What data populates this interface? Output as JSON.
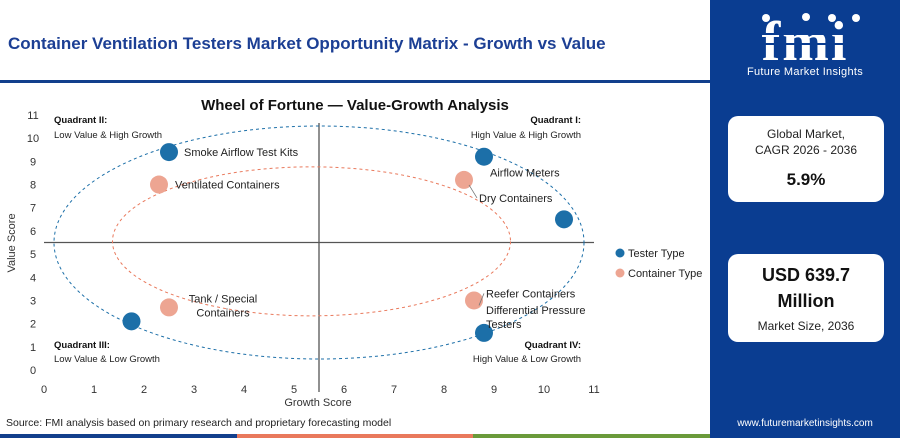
{
  "header": {
    "title": "Container Ventilation Testers Market Opportunity Matrix - Growth vs Value"
  },
  "chart_data": {
    "type": "scatter",
    "title": "Wheel of Fortune — Value-Growth Analysis",
    "xlabel": "Growth Score",
    "ylabel": "Value Score",
    "xlim": [
      0,
      11
    ],
    "ylim": [
      0,
      11
    ],
    "xticks": [
      "0",
      "1",
      "2",
      "3",
      "4",
      "5",
      "6",
      "7",
      "8",
      "9",
      "10",
      "11"
    ],
    "yticks": [
      "0",
      "1",
      "2",
      "3",
      "4",
      "5",
      "6",
      "7",
      "8",
      "9",
      "10",
      "11"
    ],
    "divider": {
      "x": 5.5,
      "y": 5.5
    },
    "quadrants": [
      {
        "title": "Quadrant II:",
        "subtitle": "Low Value & High Growth",
        "pos": "top-left"
      },
      {
        "title": "Quadrant I:",
        "subtitle": "High Value & High Growth",
        "pos": "top-right"
      },
      {
        "title": "Quadrant III:",
        "subtitle": "Low Value & Low Growth",
        "pos": "bottom-left"
      },
      {
        "title": "Quadrant IV:",
        "subtitle": "High Value & Low Growth",
        "pos": "bottom-right"
      }
    ],
    "series": [
      {
        "name": "Tester Type",
        "color": "#1c6fa8",
        "points": [
          {
            "label": "Smoke Airflow Test Kits",
            "x": 2.5,
            "y": 9.4
          },
          {
            "label": "Airflow Meters",
            "x": 8.8,
            "y": 9.2
          },
          {
            "label": "Differential Pressure Testers",
            "x": 8.8,
            "y": 1.6
          },
          {
            "label": "",
            "x": 10.4,
            "y": 6.5
          },
          {
            "label": "",
            "x": 1.75,
            "y": 2.1
          }
        ]
      },
      {
        "name": "Container Type",
        "color": "#eda592",
        "points": [
          {
            "label": "Ventilated Containers",
            "x": 2.3,
            "y": 8.0
          },
          {
            "label": "Dry Containers",
            "x": 8.4,
            "y": 8.2
          },
          {
            "label": "Reefer Containers",
            "x": 8.6,
            "y": 3.0
          },
          {
            "label": "Tank / Special Containers",
            "x": 2.5,
            "y": 2.7
          }
        ]
      }
    ],
    "legend": {
      "placement": "right"
    }
  },
  "sidebar": {
    "logo_text": "fmi",
    "logo_tagline": "Future Market Insights",
    "card1": {
      "label_line1": "Global Market,",
      "label_line2": "CAGR 2026 - 2036",
      "value": "5.9%"
    },
    "card2": {
      "value_line1": "USD 639.7",
      "value_line2": "Million",
      "label": "Market Size, 2036"
    },
    "website": "www.futuremarketinsights.com"
  },
  "footer": {
    "source": "Source: FMI analysis based on primary research and proprietary forecasting model"
  },
  "colors": {
    "brand": "#0a3d91",
    "title": "#1c3f94",
    "tester": "#1c6fa8",
    "container": "#eda592"
  }
}
